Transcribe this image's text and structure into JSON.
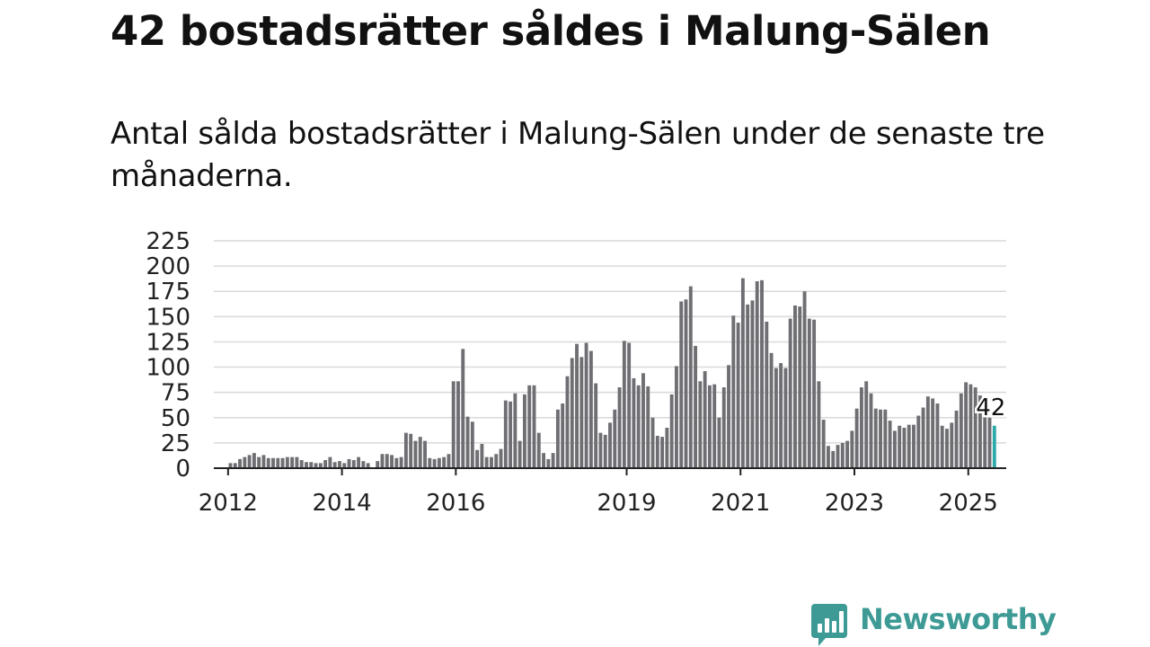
{
  "title": "42 bostadsrätter såldes i Malung-Sälen",
  "subtitle": "Antal sålda bostadsrätter i Malung-Sälen under de senaste tre månaderna.",
  "brand": {
    "name": "Newsworthy",
    "color": "#3d9a95",
    "icon": "newsworthy-chat-bars-icon"
  },
  "chart_data": {
    "type": "bar",
    "title": "42 bostadsrätter såldes i Malung-Sälen",
    "xlabel": "",
    "ylabel": "",
    "x_start": "2011-10",
    "ylim": [
      0,
      225
    ],
    "yticks": [
      0,
      25,
      50,
      75,
      100,
      125,
      150,
      175,
      200,
      225
    ],
    "xticks": [
      {
        "label": "2012",
        "date": "2012-01"
      },
      {
        "label": "2014",
        "date": "2014-01"
      },
      {
        "label": "2016",
        "date": "2016-01"
      },
      {
        "label": "2019",
        "date": "2019-01"
      },
      {
        "label": "2021",
        "date": "2021-01"
      },
      {
        "label": "2023",
        "date": "2023-01"
      },
      {
        "label": "2025",
        "date": "2025-01"
      }
    ],
    "grid": true,
    "bar_color": "#6e6e73",
    "highlight_color": "#2ea8a8",
    "highlight_last": true,
    "last_value_label": "42",
    "values": [
      0,
      0,
      0,
      5,
      5,
      9,
      11,
      13,
      15,
      11,
      13,
      10,
      10,
      10,
      10,
      11,
      11,
      11,
      8,
      6,
      6,
      5,
      5,
      8,
      11,
      6,
      7,
      5,
      9,
      8,
      11,
      7,
      5,
      0,
      7,
      14,
      14,
      13,
      10,
      11,
      35,
      34,
      27,
      31,
      27,
      10,
      9,
      10,
      11,
      14,
      86,
      86,
      118,
      51,
      46,
      18,
      24,
      11,
      11,
      14,
      19,
      67,
      66,
      74,
      27,
      73,
      82,
      82,
      35,
      15,
      9,
      15,
      58,
      64,
      91,
      109,
      123,
      110,
      124,
      116,
      84,
      35,
      33,
      45,
      58,
      80,
      126,
      124,
      89,
      82,
      94,
      81,
      50,
      32,
      31,
      40,
      73,
      101,
      165,
      167,
      180,
      121,
      86,
      96,
      82,
      83,
      50,
      80,
      102,
      151,
      144,
      188,
      162,
      166,
      185,
      186,
      145,
      114,
      99,
      104,
      99,
      148,
      161,
      160,
      175,
      148,
      147,
      86,
      48,
      22,
      17,
      23,
      25,
      27,
      37,
      59,
      80,
      86,
      74,
      59,
      58,
      58,
      47,
      37,
      42,
      40,
      43,
      43,
      52,
      60,
      71,
      69,
      64,
      42,
      39,
      45,
      57,
      74,
      85,
      83,
      80,
      72,
      58,
      50,
      42
    ]
  }
}
